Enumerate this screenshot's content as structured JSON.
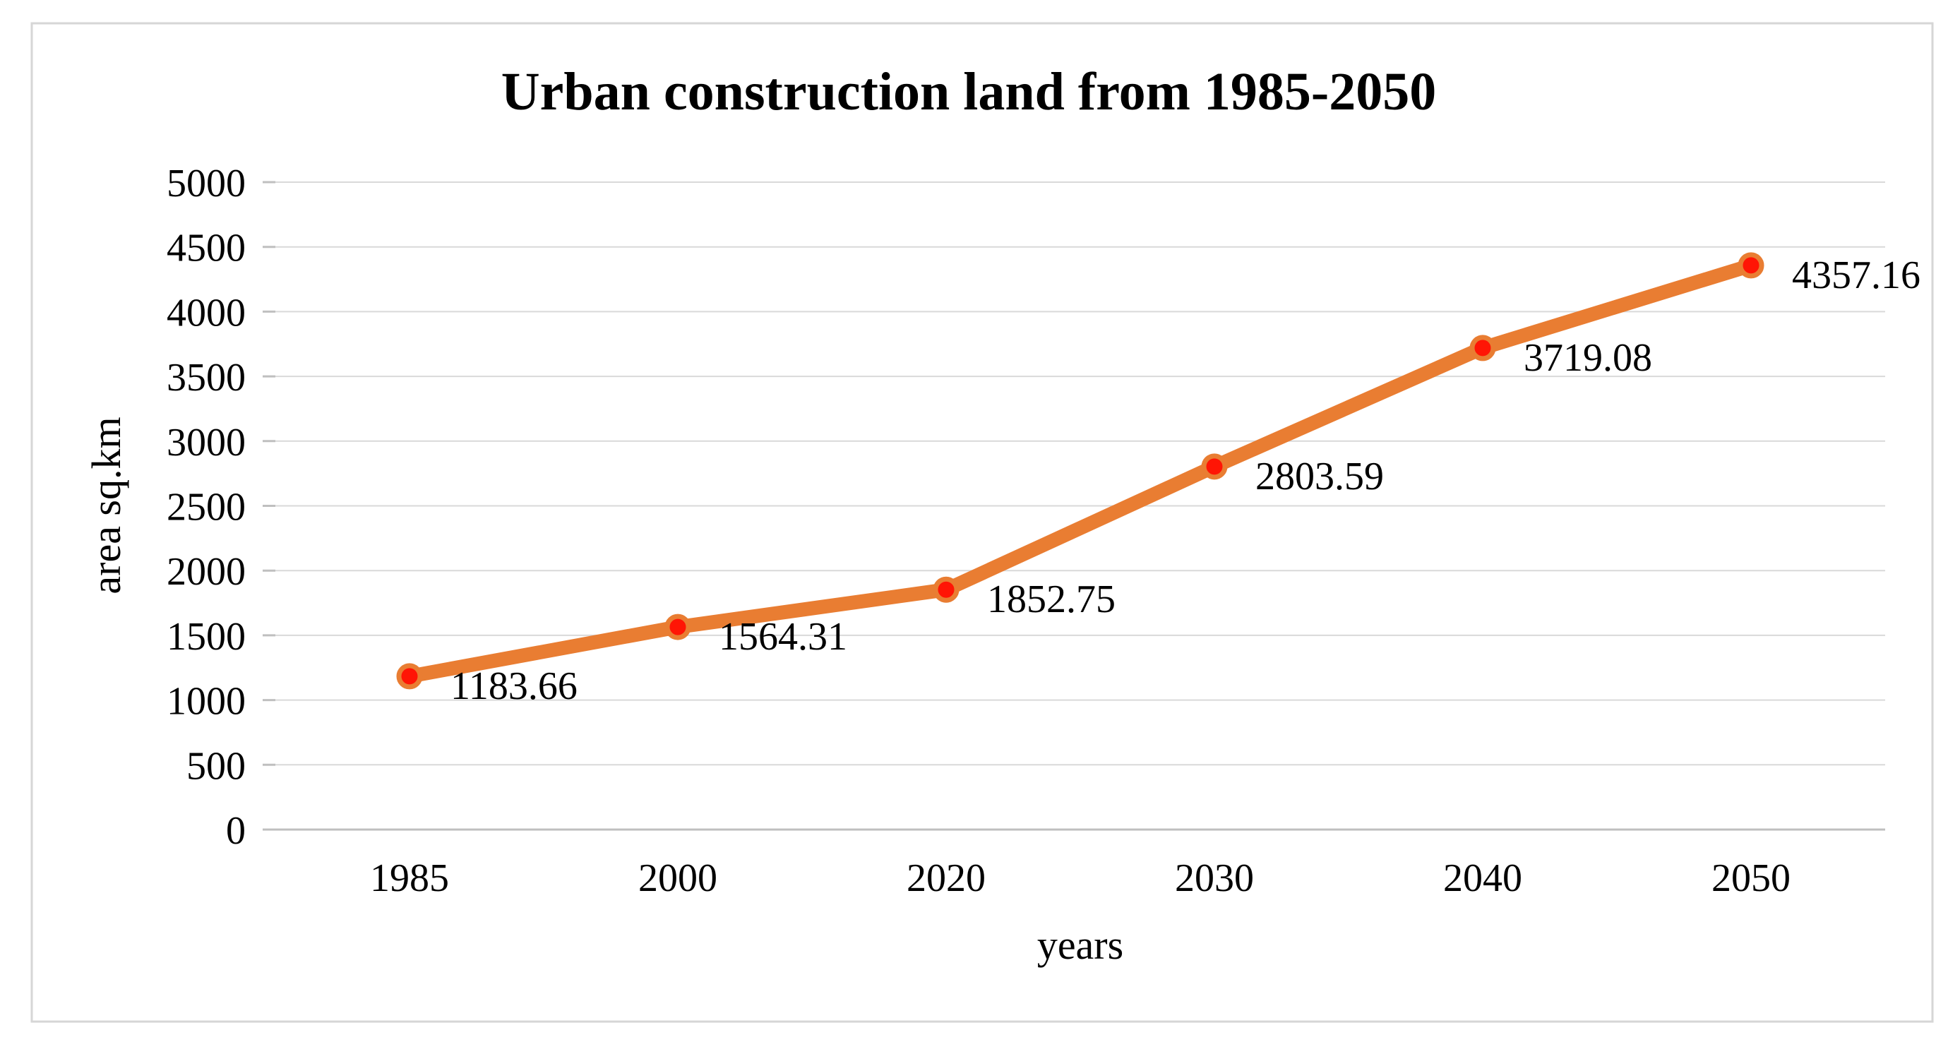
{
  "chart_data": {
    "type": "line",
    "title": "Urban construction land from 1985-2050",
    "xlabel": "years",
    "ylabel": "area sq.km",
    "categories": [
      "1985",
      "2000",
      "2020",
      "2030",
      "2040",
      "2050"
    ],
    "series": [
      {
        "name": "Urban construction land",
        "values": [
          1183.66,
          1564.31,
          1852.75,
          2803.59,
          3719.08,
          4357.16
        ],
        "point_labels": [
          "1183.66",
          "1564.31",
          "1852.75",
          "2803.59",
          "3719.08",
          "4357.16"
        ]
      }
    ],
    "ylim": [
      0,
      5000
    ],
    "y_ticks": [
      0,
      500,
      1000,
      1500,
      2000,
      2500,
      3000,
      3500,
      4000,
      4500,
      5000
    ],
    "grid": "horizontal",
    "legend_position": "none",
    "colors": {
      "line": "#E97D32",
      "marker_fill": "#FF1505",
      "marker_stroke": "#E97D32",
      "gridline": "#D9D9D9",
      "axis_line": "#BFBFBF",
      "tick_mark": "#BFBFBF",
      "text": "#000000",
      "chart_border": "#D6D6D6",
      "background": "#FFFFFF"
    }
  }
}
